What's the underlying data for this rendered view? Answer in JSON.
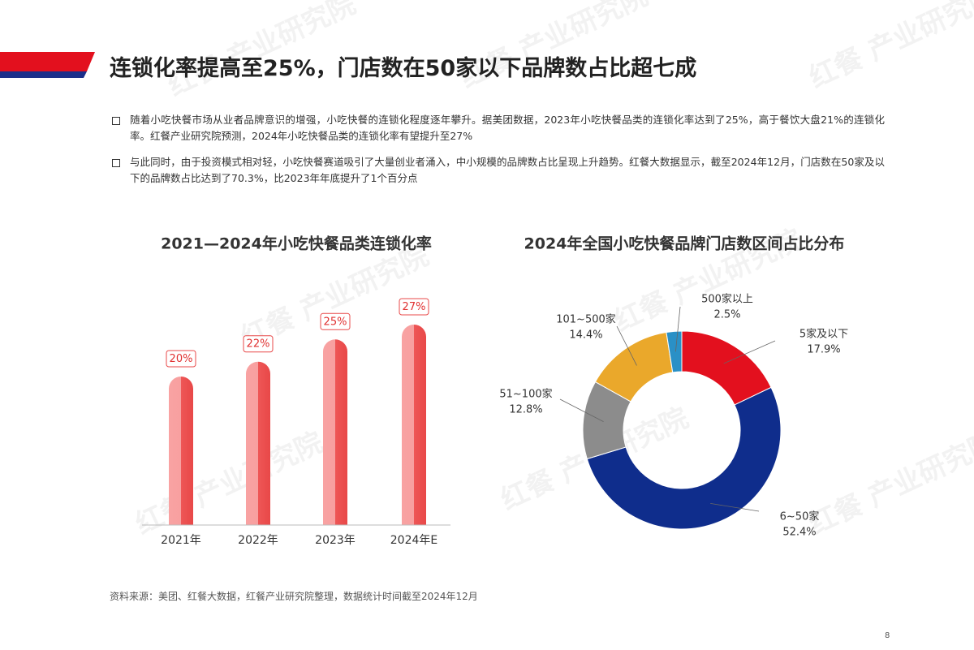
{
  "title": "连锁化率提高至25%，门店数在50家以下品牌数占比超七成",
  "bullets": [
    "随着小吃快餐市场从业者品牌意识的增强，小吃快餐的连锁化程度逐年攀升。据美团数据，2023年小吃快餐品类的连锁化率达到了25%，高于餐饮大盘21%的连锁化率。红餐产业研究院预测，2024年小吃快餐品类的连锁化率有望提升至27%",
    "与此同时，由于投资模式相对轻，小吃快餐赛道吸引了大量创业者涌入，中小规模的品牌数占比呈现上升趋势。红餐大数据显示，截至2024年12月，门店数在50家及以下的品牌数占比达到了70.3%，比2023年年底提升了1个百分点"
  ],
  "source": "资料来源：美团、红餐大数据，红餐产业研究院整理，数据统计时间截至2024年12月",
  "watermark": "红餐 产业研究院",
  "page_number": "8",
  "chart_data": [
    {
      "type": "bar",
      "title": "2021—2024年小吃快餐品类连锁化率",
      "categories": [
        "2021年",
        "2022年",
        "2023年",
        "2024年E"
      ],
      "values": [
        20,
        22,
        25,
        27
      ],
      "value_labels": [
        "20%",
        "22%",
        "25%",
        "27%"
      ],
      "color": "#f05a5a"
    },
    {
      "type": "pie",
      "title": "2024年全国小吃快餐品牌门店数区间占比分布",
      "categories": [
        "5家及以下",
        "6~50家",
        "51~100家",
        "101~500家",
        "500家以上"
      ],
      "values": [
        17.9,
        52.4,
        12.8,
        14.4,
        2.5
      ],
      "value_labels": [
        "17.9%",
        "52.4%",
        "12.8%",
        "14.4%",
        "2.5%"
      ],
      "colors": [
        "#e3101e",
        "#0f2d8c",
        "#8c8c8c",
        "#eaa82b",
        "#2a90c6"
      ]
    }
  ]
}
